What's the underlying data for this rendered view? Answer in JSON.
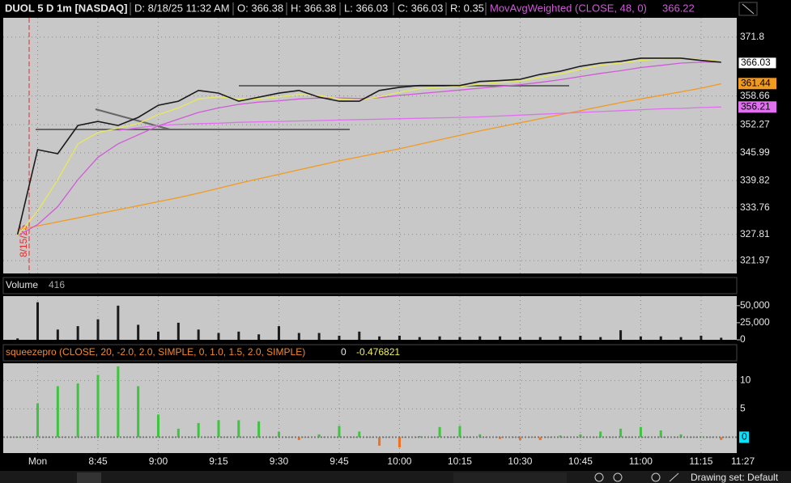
{
  "chart_data": [
    {
      "type": "line",
      "title": "DUOL 5 D 1m [NASDAQ]",
      "info": [
        "D: 8/18/25 11:32 AM",
        "O: 366.38",
        "H: 366.38",
        "L: 366.03",
        "C: 366.03",
        "R: 0.35"
      ],
      "session_break_label": "8/15/25",
      "current_time_label": "11:27",
      "categories": [
        null,
        "Mon",
        null,
        null,
        "8:45",
        null,
        null,
        "9:00",
        null,
        null,
        "9:15",
        null,
        null,
        "9:30",
        null,
        null,
        "9:45",
        null,
        null,
        "10:00",
        null,
        null,
        "10:15",
        null,
        null,
        "10:30",
        null,
        null,
        "10:45",
        null,
        null,
        "11:00",
        null,
        null,
        "11:15",
        null
      ],
      "ylim": [
        319.1,
        376.1
      ],
      "yticks": [
        321.97,
        327.81,
        333.76,
        339.82,
        345.99,
        352.27,
        358.66,
        371.8
      ],
      "grid": true,
      "series": [
        {
          "color": "#f29a1e",
          "last_label": 361.44,
          "values": [
            328.8,
            329.7,
            330.6,
            331.5,
            332.4,
            333.3,
            334.2,
            335.1,
            336.0,
            337.0,
            338.1,
            339.2,
            340.2,
            341.2,
            342.2,
            343.2,
            344.2,
            345.1,
            346.0,
            346.9,
            347.9,
            348.9,
            349.9,
            350.9,
            351.8,
            352.7,
            353.6,
            354.5,
            355.4,
            356.3,
            357.2,
            358.0,
            358.8,
            359.6,
            360.4,
            361.4
          ]
        },
        {
          "color": "#e070f0",
          "last_label": 356.21,
          "values": [
            null,
            null,
            null,
            null,
            null,
            351.0,
            351.6,
            352.1,
            352.3,
            352.5,
            352.6,
            352.8,
            352.9,
            353.0,
            353.1,
            353.2,
            353.3,
            353.4,
            353.5,
            353.6,
            353.7,
            353.8,
            353.9,
            354.0,
            354.2,
            354.4,
            354.6,
            354.8,
            355.0,
            355.2,
            355.4,
            355.6,
            355.8,
            355.9,
            356.1,
            356.2
          ]
        },
        {
          "name": "MovAvgWeighted (CLOSE, 48, 0)",
          "legend_value": 366.22,
          "color": "#d05ad8",
          "values": [
            327.5,
            330,
            334,
            340,
            345,
            348,
            350,
            352,
            353.5,
            355,
            356,
            356.8,
            357.3,
            357.6,
            358,
            358.2,
            358.2,
            358.1,
            358.3,
            358.8,
            359.2,
            359.6,
            360,
            360.4,
            360.8,
            361.2,
            361.7,
            362.3,
            363,
            363.7,
            364.3,
            365,
            365.5,
            366,
            366.2,
            366.2
          ]
        },
        {
          "color": "#e8e85a",
          "values": [
            327.5,
            333,
            340,
            348,
            350.5,
            351.5,
            352.5,
            354.5,
            356,
            358,
            358.5,
            358,
            358,
            358.5,
            359,
            358.8,
            358,
            357.8,
            358.5,
            359.5,
            360.3,
            360.6,
            360.8,
            361.3,
            361.7,
            362,
            362.8,
            363.6,
            364.6,
            365.5,
            366,
            366.6,
            366.9,
            367,
            366.8,
            366.4
          ]
        },
        {
          "color": "#1a1a1a",
          "last_label": 366.03,
          "values": [
            327.8,
            346.7,
            345.8,
            352.1,
            353.0,
            352.1,
            353.9,
            356.6,
            357.5,
            359.9,
            359.3,
            357.5,
            358.4,
            359.3,
            359.9,
            358.4,
            357.5,
            357.5,
            359.9,
            360.6,
            361.0,
            361.0,
            361.0,
            361.9,
            362.1,
            362.4,
            363.5,
            364.2,
            365.3,
            366.0,
            366.4,
            367.1,
            367.1,
            367.1,
            366.6,
            366.2
          ]
        }
      ]
    },
    {
      "type": "bar",
      "title": "Volume",
      "current": 416,
      "color": "#1a1a1a",
      "ylim": [
        0,
        64000
      ],
      "yticks": [
        {
          "value": 50000,
          "label": "50,000"
        },
        {
          "value": 25000,
          "label": "25,000"
        },
        0
      ],
      "values": [
        2000,
        55000,
        15000,
        20000,
        30000,
        50000,
        22000,
        12000,
        25000,
        15000,
        10000,
        12000,
        8000,
        20000,
        10000,
        10000,
        6000,
        12000,
        5000,
        6000,
        4000,
        5000,
        4000,
        5000,
        5000,
        4000,
        4000,
        5000,
        6000,
        4000,
        14000,
        5000,
        5000,
        4000,
        6000,
        3000
      ]
    },
    {
      "type": "bar",
      "title": "squeezepro (CLOSE, 20, -2.0, 2.0, SIMPLE, 0, 1.0, 1.5, 2.0, SIMPLE)",
      "readouts": [
        0,
        -0.476821
      ],
      "positive_color": "#3ec43e",
      "negative_color": "#f07020",
      "zero_tag_color": "#00e5ff",
      "ylim": [
        -2.8,
        13.05
      ],
      "yticks": [
        10,
        5,
        0
      ],
      "values": [
        0,
        6,
        9,
        9.5,
        11,
        12.5,
        9,
        4,
        1.5,
        2.5,
        3,
        3,
        2.8,
        1,
        -0.5,
        0.5,
        2,
        1,
        -1.5,
        -1.8,
        0.2,
        1.8,
        2,
        0.5,
        -0.3,
        -0.5,
        -0.5,
        0.3,
        0.5,
        1,
        1.5,
        1.8,
        1.2,
        0.5,
        0,
        -0.48
      ]
    }
  ],
  "toolbar": {
    "drawing_set": "Drawing set: Default"
  }
}
